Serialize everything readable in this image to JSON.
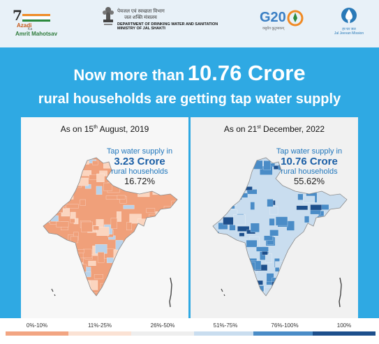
{
  "header": {
    "azadi": {
      "numeral": "7",
      "line1": "Azadi",
      "line2": "Ka",
      "line3": "Amrit Mahotsav"
    },
    "ministry": {
      "hindi1": "पेयजल एवं स्वच्छता विभाग",
      "hindi2": "जल शक्ति मंत्रालय",
      "english1": "DEPARTMENT OF DRINKING WATER AND SANITATION",
      "english2": "MINISTRY OF JAL SHAKTI"
    },
    "g20": {
      "text": "G20",
      "tagline": "वसुधैव कुटुम्बकम्"
    },
    "jjm": {
      "line1": "हर घर जल",
      "line2": "Jal Jeevan Mission"
    }
  },
  "headline": {
    "prefix": "Now more than",
    "figure": "10.76 Crore",
    "line2": "rural households are getting tap water supply"
  },
  "panels": [
    {
      "date_prefix": "As on 15",
      "date_sup": "th",
      "date_suffix": " August, 2019",
      "stat_line1": "Tap water supply in",
      "stat_value": "3.23 Crore",
      "stat_line3": "rural households",
      "stat_percent": "16.72%",
      "map_fill_share": 0.1672
    },
    {
      "date_prefix": "As on 21",
      "date_sup": "st",
      "date_suffix": " December, 2022",
      "stat_line1": "Tap water supply in",
      "stat_value": "10.76 Crore",
      "stat_line3": "rural households",
      "stat_percent": "55.62%",
      "map_fill_share": 0.5562
    }
  ],
  "legend": [
    {
      "label": "0%-10%",
      "color": "#f2a582"
    },
    {
      "label": "11%-25%",
      "color": "#fbe2d4"
    },
    {
      "label": "26%-50%",
      "color": "#eeeeee"
    },
    {
      "label": "51%-75%",
      "color": "#c9ddef"
    },
    {
      "label": "76%-100%",
      "color": "#4a8cc7"
    },
    {
      "label": "100%",
      "color": "#1d4f8c"
    }
  ],
  "colors": {
    "band": "#2fa9e3",
    "map_left_main": "#f0a07a",
    "map_left_alt": "#fbd5bf",
    "map_left_cool": "#b8d2ea",
    "map_right_main": "#4a8cc7",
    "map_right_dark": "#1d4f8c",
    "map_right_light": "#c9ddef"
  }
}
